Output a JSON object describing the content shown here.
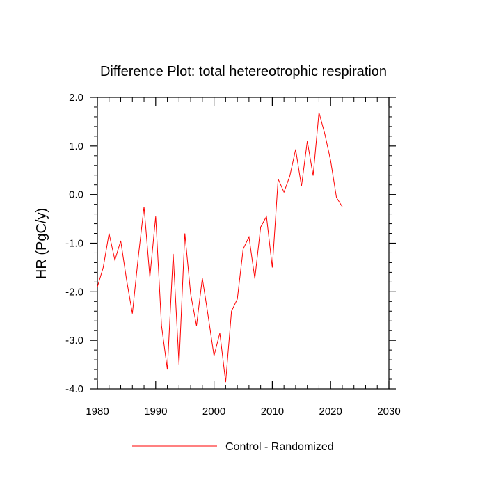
{
  "chart_data": {
    "type": "line",
    "title": "Difference Plot: total hetereotrophic respiration",
    "xlabel": "",
    "ylabel": "HR  (PgC/y)",
    "xlim": [
      1980,
      2030
    ],
    "ylim": [
      -4.0,
      2.0
    ],
    "x_ticks": [
      1980,
      1990,
      2000,
      2010,
      2020,
      2030
    ],
    "x_tick_labels": [
      "1980",
      "1990",
      "2000",
      "2010",
      "2020",
      "2030"
    ],
    "y_ticks": [
      2.0,
      1.0,
      0.0,
      -1.0,
      -2.0,
      -3.0,
      -4.0
    ],
    "y_tick_labels": [
      "2.0",
      "1.0",
      "0.0",
      "-1.0",
      "-2.0",
      "-3.0",
      "-4.0"
    ],
    "grid": false,
    "legend_position": "bottom",
    "series": [
      {
        "name": "Control - Randomized",
        "color": "#ff0000",
        "x": [
          1980,
          1981,
          1982,
          1983,
          1984,
          1985,
          1986,
          1987,
          1988,
          1989,
          1990,
          1991,
          1992,
          1993,
          1994,
          1995,
          1996,
          1997,
          1998,
          1999,
          2000,
          2001,
          2002,
          2003,
          2004,
          2005,
          2006,
          2007,
          2008,
          2009,
          2010,
          2011,
          2012,
          2013,
          2014,
          2015,
          2016,
          2017,
          2018,
          2019,
          2020,
          2021,
          2022
        ],
        "values": [
          -1.9,
          -1.5,
          -0.8,
          -1.35,
          -0.95,
          -1.75,
          -2.45,
          -1.3,
          -0.25,
          -1.7,
          -0.45,
          -2.7,
          -3.6,
          -1.22,
          -3.5,
          -0.8,
          -2.05,
          -2.7,
          -1.72,
          -2.5,
          -3.32,
          -2.85,
          -3.86,
          -2.4,
          -2.15,
          -1.12,
          -0.87,
          -1.73,
          -0.67,
          -0.45,
          -1.5,
          0.32,
          0.05,
          0.38,
          0.93,
          0.17,
          1.1,
          0.39,
          1.69,
          1.25,
          0.7,
          -0.06,
          -0.25
        ]
      }
    ]
  }
}
